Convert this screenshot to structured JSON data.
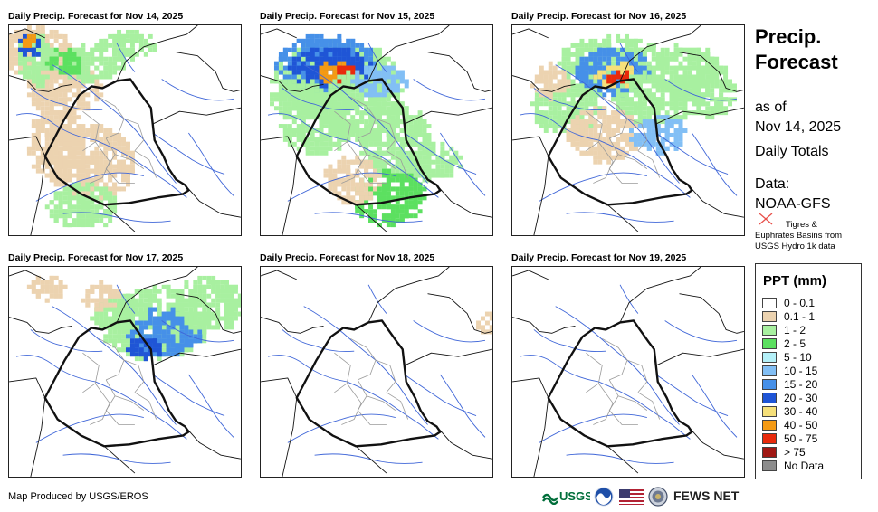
{
  "panels": [
    {
      "title": "Daily Precip. Forecast for Nov 14, 2025",
      "level": 2
    },
    {
      "title": "Daily Precip. Forecast for Nov 15, 2025",
      "level": 4
    },
    {
      "title": "Daily Precip. Forecast for Nov 16, 2025",
      "level": 3
    },
    {
      "title": "Daily Precip. Forecast for Nov 17, 2025",
      "level": 1
    },
    {
      "title": "Daily Precip. Forecast for Nov 18, 2025",
      "level": 0
    },
    {
      "title": "Daily Precip. Forecast for Nov 19, 2025",
      "level": 0
    }
  ],
  "side": {
    "title_line1": "Precip.",
    "title_line2": "Forecast",
    "as_of_label": "as of",
    "date": "Nov 14, 2025",
    "period": "Daily Totals",
    "data_label": "Data:",
    "data_source": "NOAA-GFS",
    "note": "Tigres & Euphrates Basins from USGS Hydro 1k data"
  },
  "legend": {
    "title": "PPT (mm)",
    "items": [
      {
        "label": "0 - 0.1",
        "color": "#ffffff"
      },
      {
        "label": "0.1 - 1",
        "color": "#ecd3b0"
      },
      {
        "label": "1 - 2",
        "color": "#a8f0a0"
      },
      {
        "label": "2 - 5",
        "color": "#5ce060"
      },
      {
        "label": "5 - 10",
        "color": "#b4f0f8"
      },
      {
        "label": "10 - 15",
        "color": "#82bff5"
      },
      {
        "label": "15 - 20",
        "color": "#4690e8"
      },
      {
        "label": "20 - 30",
        "color": "#1f55d6"
      },
      {
        "label": "30 - 40",
        "color": "#f6e07a"
      },
      {
        "label": "40 - 50",
        "color": "#f49a14"
      },
      {
        "label": "50 - 75",
        "color": "#e82a0c"
      },
      {
        "label": "> 75",
        "color": "#a01814"
      },
      {
        "label": "No Data",
        "color": "#8c8c8c"
      }
    ]
  },
  "footer": {
    "credit": "Map Produced by USGS/EROS",
    "usgs": "USGS",
    "fews": "FEWS NET"
  }
}
